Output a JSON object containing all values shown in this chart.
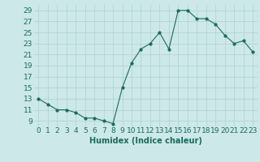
{
  "x": [
    0,
    1,
    2,
    3,
    4,
    5,
    6,
    7,
    8,
    9,
    10,
    11,
    12,
    13,
    14,
    15,
    16,
    17,
    18,
    19,
    20,
    21,
    22,
    23
  ],
  "y": [
    13,
    12,
    11,
    11,
    10.5,
    9.5,
    9.5,
    9,
    8.5,
    15,
    19.5,
    22,
    23,
    25,
    22,
    29,
    29,
    27.5,
    27.5,
    26.5,
    24.5,
    23,
    23.5,
    21.5
  ],
  "line_color": "#1a6b5e",
  "marker_color": "#1a6b5e",
  "bg_color": "#cce8e8",
  "grid_color": "#b0d0d0",
  "xlabel": "Humidex (Indice chaleur)",
  "xlim": [
    -0.5,
    23.5
  ],
  "ylim": [
    8,
    30
  ],
  "yticks": [
    9,
    11,
    13,
    15,
    17,
    19,
    21,
    23,
    25,
    27,
    29
  ],
  "xticks": [
    0,
    1,
    2,
    3,
    4,
    5,
    6,
    7,
    8,
    9,
    10,
    11,
    12,
    13,
    14,
    15,
    16,
    17,
    18,
    19,
    20,
    21,
    22,
    23
  ],
  "xlabel_fontsize": 7,
  "tick_fontsize": 6.5
}
